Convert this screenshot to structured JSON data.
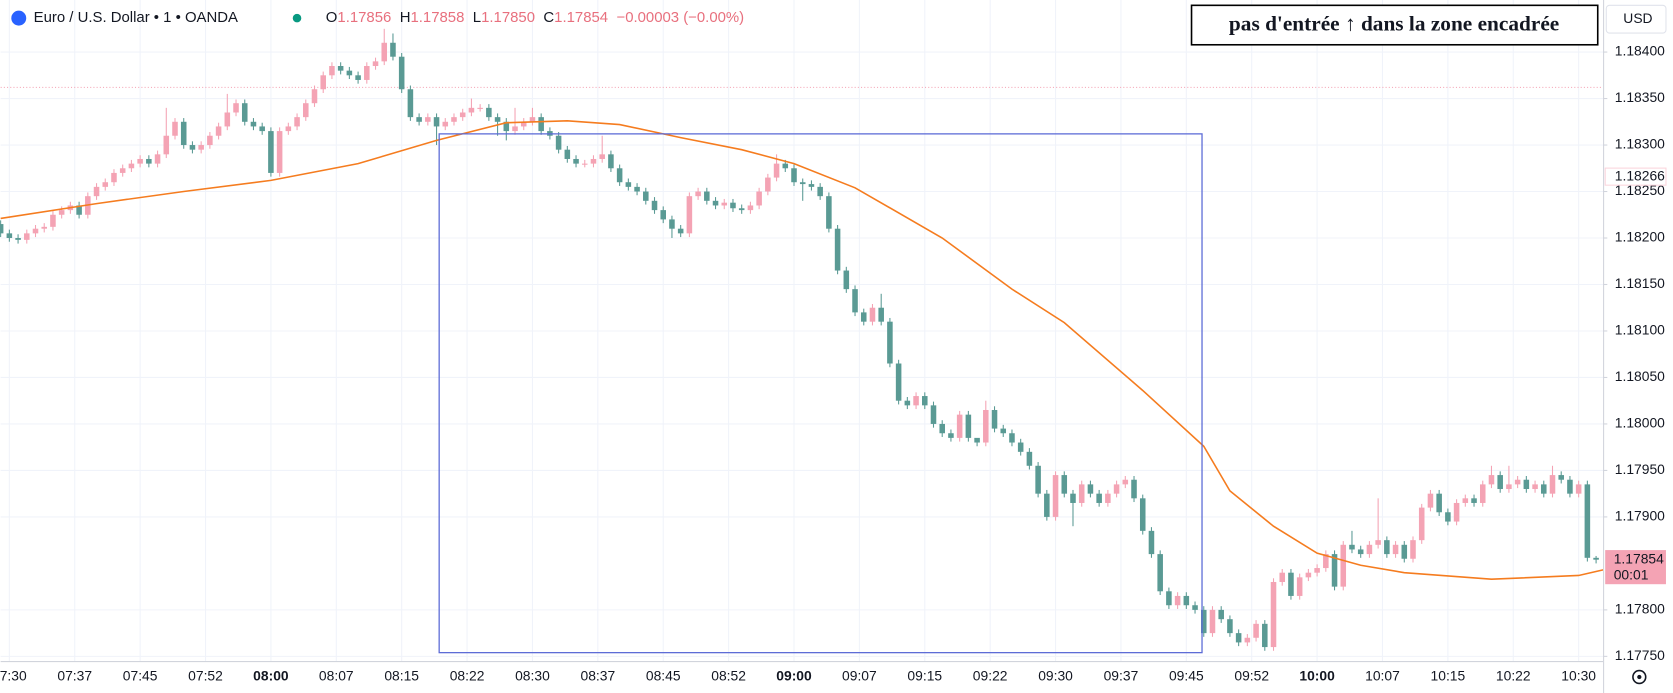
{
  "header": {
    "symbol": "Euro / U.S. Dollar • 1 • OANDA",
    "o_label": "O",
    "o": "1.17856",
    "h_label": "H",
    "h": "1.17858",
    "l_label": "L",
    "l": "1.17850",
    "c_label": "C",
    "c": "1.17854",
    "change": "−0.00003 (−0.00%)",
    "currency": "USD"
  },
  "chart_data": {
    "type": "candlestick",
    "annotation": "pas d'entrée ↑ dans la zone encadrée",
    "up_color": "#f4a3b4",
    "down_color": "#5a9a94",
    "ma_color": "#f57c1f",
    "box_color": "#5c6bd6",
    "grid": true,
    "xlim": [
      1,
      184.8
    ],
    "ylim": [
      1.17745,
      1.18456
    ],
    "xticks": [
      {
        "value": 2,
        "label": "07:30"
      },
      {
        "value": 9.5,
        "label": "07:37"
      },
      {
        "value": 17,
        "label": "07:45"
      },
      {
        "value": 24.5,
        "label": "07:52"
      },
      {
        "value": 32,
        "label": "08:00"
      },
      {
        "value": 39.5,
        "label": "08:07"
      },
      {
        "value": 47,
        "label": "08:15"
      },
      {
        "value": 54.5,
        "label": "08:22"
      },
      {
        "value": 62,
        "label": "08:30"
      },
      {
        "value": 69.5,
        "label": "08:37"
      },
      {
        "value": 77,
        "label": "08:45"
      },
      {
        "value": 84.5,
        "label": "08:52"
      },
      {
        "value": 92,
        "label": "09:00"
      },
      {
        "value": 99.5,
        "label": "09:07"
      },
      {
        "value": 107,
        "label": "09:15"
      },
      {
        "value": 114.5,
        "label": "09:22"
      },
      {
        "value": 122,
        "label": "09:30"
      },
      {
        "value": 129.5,
        "label": "09:37"
      },
      {
        "value": 137,
        "label": "09:45"
      },
      {
        "value": 144.5,
        "label": "09:52"
      },
      {
        "value": 152,
        "label": "10:00"
      },
      {
        "value": 159.5,
        "label": "10:07"
      },
      {
        "value": 167,
        "label": "10:15"
      },
      {
        "value": 174.5,
        "label": "10:22"
      },
      {
        "value": 182,
        "label": "10:30"
      }
    ],
    "yticks": [
      {
        "value": 1.184,
        "label": "1.18400"
      },
      {
        "value": 1.1835,
        "label": "1.18350"
      },
      {
        "value": 1.183,
        "label": "1.18300"
      },
      {
        "value": 1.1825,
        "label": "1.18250"
      },
      {
        "value": 1.182,
        "label": "1.18200"
      },
      {
        "value": 1.1815,
        "label": "1.18150"
      },
      {
        "value": 1.181,
        "label": "1.18100"
      },
      {
        "value": 1.1805,
        "label": "1.18050"
      },
      {
        "value": 1.18,
        "label": "1.18000"
      },
      {
        "value": 1.1795,
        "label": "1.17950"
      },
      {
        "value": 1.179,
        "label": "1.17900"
      },
      {
        "value": 1.178,
        "label": "1.17800"
      },
      {
        "value": 1.1775,
        "label": "1.17750"
      }
    ],
    "candles": [
      [
        1.1822,
        1.18224,
        1.18211,
        1.18215
      ],
      [
        1.18215,
        1.18219,
        1.18201,
        1.18205
      ],
      [
        1.18205,
        1.18209,
        1.18196,
        1.182
      ],
      [
        1.182,
        1.18204,
        1.18194,
        1.18198
      ],
      [
        1.18198,
        1.18209,
        1.18194,
        1.18205
      ],
      [
        1.18205,
        1.18214,
        1.18201,
        1.1821
      ],
      [
        1.1821,
        1.18216,
        1.18206,
        1.18212
      ],
      [
        1.18212,
        1.18229,
        1.18208,
        1.18225
      ],
      [
        1.18225,
        1.18234,
        1.18221,
        1.1823
      ],
      [
        1.1823,
        1.18239,
        1.18226,
        1.18235
      ],
      [
        1.18235,
        1.18239,
        1.18221,
        1.18225
      ],
      [
        1.18225,
        1.18249,
        1.18221,
        1.18245
      ],
      [
        1.18245,
        1.18259,
        1.18241,
        1.18255
      ],
      [
        1.18255,
        1.18264,
        1.18251,
        1.1826
      ],
      [
        1.1826,
        1.18274,
        1.18256,
        1.1827
      ],
      [
        1.1827,
        1.18279,
        1.18266,
        1.18275
      ],
      [
        1.18275,
        1.18284,
        1.18271,
        1.1828
      ],
      [
        1.1828,
        1.18289,
        1.18276,
        1.18285
      ],
      [
        1.18285,
        1.18289,
        1.18276,
        1.1828
      ],
      [
        1.1828,
        1.18294,
        1.18276,
        1.1829
      ],
      [
        1.1829,
        1.1834,
        1.18286,
        1.1831
      ],
      [
        1.1831,
        1.18329,
        1.18306,
        1.18325
      ],
      [
        1.18325,
        1.18329,
        1.18296,
        1.183
      ],
      [
        1.183,
        1.18304,
        1.18291,
        1.18295
      ],
      [
        1.18295,
        1.18304,
        1.18291,
        1.183
      ],
      [
        1.183,
        1.18314,
        1.18296,
        1.1831
      ],
      [
        1.1831,
        1.18324,
        1.18306,
        1.1832
      ],
      [
        1.1832,
        1.18355,
        1.18316,
        1.18335
      ],
      [
        1.18335,
        1.18349,
        1.18331,
        1.18345
      ],
      [
        1.18345,
        1.18349,
        1.18321,
        1.18325
      ],
      [
        1.18325,
        1.18329,
        1.18316,
        1.1832
      ],
      [
        1.1832,
        1.18324,
        1.18311,
        1.18315
      ],
      [
        1.18315,
        1.18319,
        1.18266,
        1.1827
      ],
      [
        1.1827,
        1.18319,
        1.18266,
        1.18315
      ],
      [
        1.18315,
        1.18324,
        1.18311,
        1.1832
      ],
      [
        1.1832,
        1.18334,
        1.18316,
        1.1833
      ],
      [
        1.1833,
        1.18349,
        1.18326,
        1.18345
      ],
      [
        1.18345,
        1.18364,
        1.18341,
        1.1836
      ],
      [
        1.1836,
        1.18379,
        1.18356,
        1.18375
      ],
      [
        1.18375,
        1.18389,
        1.18371,
        1.18385
      ],
      [
        1.18385,
        1.18389,
        1.18376,
        1.1838
      ],
      [
        1.1838,
        1.18384,
        1.18371,
        1.18375
      ],
      [
        1.18375,
        1.18379,
        1.18366,
        1.1837
      ],
      [
        1.1837,
        1.18389,
        1.18366,
        1.18385
      ],
      [
        1.18385,
        1.18394,
        1.18381,
        1.1839
      ],
      [
        1.1839,
        1.18425,
        1.18386,
        1.1841
      ],
      [
        1.1841,
        1.1842,
        1.18391,
        1.18395
      ],
      [
        1.18395,
        1.18399,
        1.18356,
        1.1836
      ],
      [
        1.1836,
        1.18364,
        1.18326,
        1.1833
      ],
      [
        1.1833,
        1.18334,
        1.18321,
        1.18325
      ],
      [
        1.18325,
        1.18334,
        1.18321,
        1.1833
      ],
      [
        1.1833,
        1.18334,
        1.183,
        1.1832
      ],
      [
        1.1832,
        1.18329,
        1.18316,
        1.18325
      ],
      [
        1.18325,
        1.18334,
        1.18321,
        1.1833
      ],
      [
        1.1833,
        1.18339,
        1.18326,
        1.18335
      ],
      [
        1.18335,
        1.1835,
        1.18331,
        1.1834
      ],
      [
        1.1834,
        1.18344,
        1.18336,
        1.1834
      ],
      [
        1.1834,
        1.18344,
        1.18326,
        1.1833
      ],
      [
        1.1833,
        1.18334,
        1.1831,
        1.18325
      ],
      [
        1.18325,
        1.18329,
        1.18305,
        1.18315
      ],
      [
        1.18315,
        1.1834,
        1.18311,
        1.1832
      ],
      [
        1.1832,
        1.18329,
        1.18316,
        1.18325
      ],
      [
        1.18325,
        1.1834,
        1.18321,
        1.1833
      ],
      [
        1.1833,
        1.18334,
        1.18311,
        1.18315
      ],
      [
        1.18315,
        1.18319,
        1.18306,
        1.1831
      ],
      [
        1.1831,
        1.18314,
        1.18291,
        1.18295
      ],
      [
        1.18295,
        1.18299,
        1.18281,
        1.18285
      ],
      [
        1.18285,
        1.18289,
        1.18276,
        1.1828
      ],
      [
        1.1828,
        1.18284,
        1.18276,
        1.1828
      ],
      [
        1.1828,
        1.18289,
        1.18276,
        1.18285
      ],
      [
        1.18285,
        1.1831,
        1.18281,
        1.1829
      ],
      [
        1.1829,
        1.18294,
        1.18271,
        1.18275
      ],
      [
        1.18275,
        1.18279,
        1.18256,
        1.1826
      ],
      [
        1.1826,
        1.18264,
        1.18251,
        1.18255
      ],
      [
        1.18255,
        1.18259,
        1.18246,
        1.1825
      ],
      [
        1.1825,
        1.18254,
        1.18236,
        1.1824
      ],
      [
        1.1824,
        1.18244,
        1.18226,
        1.1823
      ],
      [
        1.1823,
        1.18234,
        1.18216,
        1.1822
      ],
      [
        1.1822,
        1.18224,
        1.182,
        1.1821
      ],
      [
        1.1821,
        1.18214,
        1.18201,
        1.18205
      ],
      [
        1.18205,
        1.18249,
        1.18201,
        1.18245
      ],
      [
        1.18245,
        1.18254,
        1.18241,
        1.1825
      ],
      [
        1.1825,
        1.18254,
        1.18236,
        1.1824
      ],
      [
        1.1824,
        1.18244,
        1.18231,
        1.18235
      ],
      [
        1.18235,
        1.18242,
        1.18231,
        1.18238
      ],
      [
        1.18238,
        1.18242,
        1.18228,
        1.18232
      ],
      [
        1.18232,
        1.18236,
        1.18226,
        1.1823
      ],
      [
        1.1823,
        1.18239,
        1.18226,
        1.18235
      ],
      [
        1.18235,
        1.18254,
        1.18231,
        1.1825
      ],
      [
        1.1825,
        1.18269,
        1.18246,
        1.18265
      ],
      [
        1.18265,
        1.1829,
        1.18261,
        1.1828
      ],
      [
        1.1828,
        1.18284,
        1.18271,
        1.18275
      ],
      [
        1.18275,
        1.18279,
        1.18256,
        1.1826
      ],
      [
        1.1826,
        1.18264,
        1.1824,
        1.18258
      ],
      [
        1.18258,
        1.18262,
        1.18251,
        1.18255
      ],
      [
        1.18255,
        1.18259,
        1.18241,
        1.18245
      ],
      [
        1.18245,
        1.18249,
        1.18206,
        1.1821
      ],
      [
        1.1821,
        1.18214,
        1.18161,
        1.18165
      ],
      [
        1.18165,
        1.18169,
        1.18141,
        1.18145
      ],
      [
        1.18145,
        1.18149,
        1.18116,
        1.1812
      ],
      [
        1.1812,
        1.18124,
        1.18106,
        1.1811
      ],
      [
        1.1811,
        1.18129,
        1.18106,
        1.18125
      ],
      [
        1.18125,
        1.1814,
        1.18106,
        1.1811
      ],
      [
        1.1811,
        1.18114,
        1.18061,
        1.18065
      ],
      [
        1.18065,
        1.18069,
        1.18021,
        1.18025
      ],
      [
        1.18025,
        1.18029,
        1.18016,
        1.1802
      ],
      [
        1.1802,
        1.18034,
        1.18016,
        1.1803
      ],
      [
        1.1803,
        1.18034,
        1.18016,
        1.1802
      ],
      [
        1.1802,
        1.18024,
        1.17996,
        1.18
      ],
      [
        1.18,
        1.18004,
        1.17986,
        1.1799
      ],
      [
        1.1799,
        1.17994,
        1.17981,
        1.17985
      ],
      [
        1.17985,
        1.18014,
        1.17981,
        1.1801
      ],
      [
        1.1801,
        1.18014,
        1.17981,
        1.17985
      ],
      [
        1.17985,
        1.17984,
        1.17976,
        1.1798
      ],
      [
        1.1798,
        1.18025,
        1.17976,
        1.18015
      ],
      [
        1.18015,
        1.18019,
        1.17991,
        1.17995
      ],
      [
        1.17995,
        1.17999,
        1.17986,
        1.1799
      ],
      [
        1.1799,
        1.17994,
        1.17976,
        1.1798
      ],
      [
        1.1798,
        1.17984,
        1.17966,
        1.1797
      ],
      [
        1.1797,
        1.17974,
        1.17951,
        1.17955
      ],
      [
        1.17955,
        1.17959,
        1.17921,
        1.17925
      ],
      [
        1.17925,
        1.17929,
        1.17896,
        1.179
      ],
      [
        1.179,
        1.17949,
        1.17896,
        1.17945
      ],
      [
        1.17945,
        1.17949,
        1.17921,
        1.17925
      ],
      [
        1.17925,
        1.17929,
        1.1789,
        1.17915
      ],
      [
        1.17915,
        1.17939,
        1.17911,
        1.17935
      ],
      [
        1.17935,
        1.17939,
        1.17921,
        1.17925
      ],
      [
        1.17925,
        1.17929,
        1.17911,
        1.17915
      ],
      [
        1.17915,
        1.17929,
        1.17911,
        1.17925
      ],
      [
        1.17925,
        1.17939,
        1.17921,
        1.17935
      ],
      [
        1.17935,
        1.17944,
        1.17931,
        1.1794
      ],
      [
        1.1794,
        1.17944,
        1.17916,
        1.1792
      ],
      [
        1.1792,
        1.17924,
        1.17881,
        1.17885
      ],
      [
        1.17885,
        1.17889,
        1.17856,
        1.1786
      ],
      [
        1.1786,
        1.17864,
        1.17816,
        1.1782
      ],
      [
        1.1782,
        1.17824,
        1.17801,
        1.17805
      ],
      [
        1.17805,
        1.17819,
        1.17801,
        1.17815
      ],
      [
        1.17815,
        1.17819,
        1.17801,
        1.17805
      ],
      [
        1.17805,
        1.17809,
        1.17796,
        1.178
      ],
      [
        1.178,
        1.17804,
        1.17771,
        1.17775
      ],
      [
        1.17775,
        1.17804,
        1.17771,
        1.178
      ],
      [
        1.178,
        1.17804,
        1.17786,
        1.1779
      ],
      [
        1.1779,
        1.17794,
        1.17771,
        1.17775
      ],
      [
        1.17775,
        1.17779,
        1.17761,
        1.17765
      ],
      [
        1.17765,
        1.17774,
        1.17761,
        1.1777
      ],
      [
        1.1777,
        1.17789,
        1.17766,
        1.17785
      ],
      [
        1.17785,
        1.17789,
        1.17756,
        1.1776
      ],
      [
        1.1776,
        1.17834,
        1.17756,
        1.1783
      ],
      [
        1.1783,
        1.17844,
        1.17826,
        1.1784
      ],
      [
        1.1784,
        1.17844,
        1.17811,
        1.17815
      ],
      [
        1.17815,
        1.17839,
        1.17811,
        1.17835
      ],
      [
        1.17835,
        1.17844,
        1.17831,
        1.1784
      ],
      [
        1.1784,
        1.17849,
        1.17836,
        1.17845
      ],
      [
        1.17845,
        1.17864,
        1.17841,
        1.1786
      ],
      [
        1.1786,
        1.17864,
        1.17821,
        1.17825
      ],
      [
        1.17825,
        1.17874,
        1.17821,
        1.1787
      ],
      [
        1.1787,
        1.17885,
        1.17861,
        1.17865
      ],
      [
        1.17865,
        1.17869,
        1.17856,
        1.1786
      ],
      [
        1.1786,
        1.17874,
        1.17856,
        1.1787
      ],
      [
        1.1787,
        1.1792,
        1.17866,
        1.17875
      ],
      [
        1.17875,
        1.17879,
        1.17856,
        1.1786
      ],
      [
        1.1786,
        1.17874,
        1.17856,
        1.1787
      ],
      [
        1.1787,
        1.17874,
        1.17851,
        1.17855
      ],
      [
        1.17855,
        1.17879,
        1.17851,
        1.17875
      ],
      [
        1.17875,
        1.17914,
        1.17871,
        1.1791
      ],
      [
        1.1791,
        1.17929,
        1.17906,
        1.17925
      ],
      [
        1.17925,
        1.17929,
        1.17901,
        1.17905
      ],
      [
        1.17905,
        1.17909,
        1.17891,
        1.17895
      ],
      [
        1.17895,
        1.17919,
        1.17891,
        1.17915
      ],
      [
        1.17915,
        1.17924,
        1.17911,
        1.1792
      ],
      [
        1.1792,
        1.17924,
        1.17911,
        1.17915
      ],
      [
        1.17915,
        1.17939,
        1.17911,
        1.17935
      ],
      [
        1.17935,
        1.17955,
        1.17931,
        1.17945
      ],
      [
        1.17945,
        1.17949,
        1.17926,
        1.1793
      ],
      [
        1.1793,
        1.17955,
        1.17926,
        1.17935
      ],
      [
        1.17935,
        1.17944,
        1.17931,
        1.1794
      ],
      [
        1.1794,
        1.17944,
        1.17926,
        1.1793
      ],
      [
        1.1793,
        1.17939,
        1.17926,
        1.17935
      ],
      [
        1.17935,
        1.17939,
        1.17921,
        1.17925
      ],
      [
        1.17925,
        1.17955,
        1.17921,
        1.17945
      ],
      [
        1.17945,
        1.17949,
        1.17936,
        1.1794
      ],
      [
        1.1794,
        1.17944,
        1.17921,
        1.17925
      ],
      [
        1.17925,
        1.17939,
        1.17921,
        1.17935
      ],
      [
        1.17935,
        1.17939,
        1.17852,
        1.17856
      ],
      [
        1.17856,
        1.17858,
        1.1785,
        1.17854
      ]
    ],
    "ma": {
      "x": [
        1,
        12,
        22,
        32,
        42,
        51,
        59,
        66,
        72,
        79,
        86,
        92,
        99,
        109,
        117,
        123,
        132,
        139,
        142,
        147,
        152,
        157,
        162,
        172,
        182,
        184.8
      ],
      "values": [
        1.18221,
        1.18237,
        1.1825,
        1.18262,
        1.1828,
        1.18305,
        1.18324,
        1.18326,
        1.18322,
        1.18308,
        1.18295,
        1.1828,
        1.18254,
        1.182,
        1.18145,
        1.18109,
        1.18036,
        1.17976,
        1.17928,
        1.1789,
        1.17861,
        1.17848,
        1.1784,
        1.17833,
        1.17837,
        1.17843
      ]
    },
    "box": {
      "x": [
        51.3,
        138.8
      ],
      "y": [
        1.17754,
        1.18312
      ]
    },
    "dotted_line": 1.18362,
    "faded_price_label": 1.18266,
    "price_label": {
      "value": 1.17854,
      "countdown": "00:01"
    }
  }
}
